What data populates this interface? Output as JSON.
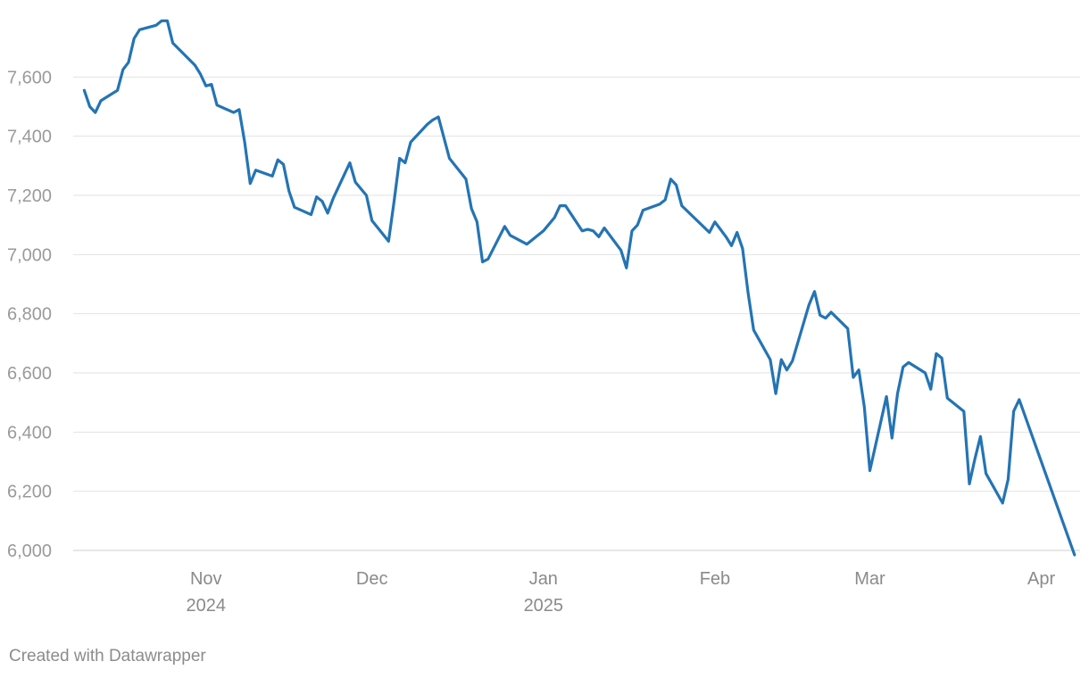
{
  "chart_data": {
    "type": "line",
    "title": "",
    "xlabel": "",
    "ylabel": "",
    "ylim": [
      6000,
      7800
    ],
    "xlim": [
      "2024-10-08",
      "2025-04-08"
    ],
    "grid": true,
    "legend": "none",
    "line_color": "#2474b4",
    "y_ticks": [
      {
        "value": 6000,
        "label": "6,000"
      },
      {
        "value": 6200,
        "label": "6,200"
      },
      {
        "value": 6400,
        "label": "6,400"
      },
      {
        "value": 6600,
        "label": "6,600"
      },
      {
        "value": 6800,
        "label": "6,800"
      },
      {
        "value": 7000,
        "label": "7,000"
      },
      {
        "value": 7200,
        "label": "7,200"
      },
      {
        "value": 7400,
        "label": "7,400"
      },
      {
        "value": 7600,
        "label": "7,600"
      }
    ],
    "x_ticks": [
      {
        "date": "2024-11-01",
        "label": "Nov",
        "sublabel": "2024"
      },
      {
        "date": "2024-12-01",
        "label": "Dec",
        "sublabel": ""
      },
      {
        "date": "2025-01-01",
        "label": "Jan",
        "sublabel": "2025"
      },
      {
        "date": "2025-02-01",
        "label": "Feb",
        "sublabel": ""
      },
      {
        "date": "2025-03-01",
        "label": "Mar",
        "sublabel": ""
      },
      {
        "date": "2025-04-01",
        "label": "Apr",
        "sublabel": ""
      }
    ],
    "series": [
      {
        "points": [
          [
            "2024-10-10",
            7555
          ],
          [
            "2024-10-11",
            7500
          ],
          [
            "2024-10-12",
            7480
          ],
          [
            "2024-10-13",
            7520
          ],
          [
            "2024-10-16",
            7555
          ],
          [
            "2024-10-17",
            7625
          ],
          [
            "2024-10-18",
            7650
          ],
          [
            "2024-10-19",
            7730
          ],
          [
            "2024-10-20",
            7760
          ],
          [
            "2024-10-23",
            7775
          ],
          [
            "2024-10-24",
            7790
          ],
          [
            "2024-10-25",
            7790
          ],
          [
            "2024-10-26",
            7715
          ],
          [
            "2024-10-30",
            7640
          ],
          [
            "2024-10-31",
            7610
          ],
          [
            "2024-11-01",
            7570
          ],
          [
            "2024-11-02",
            7575
          ],
          [
            "2024-11-03",
            7505
          ],
          [
            "2024-11-06",
            7480
          ],
          [
            "2024-11-07",
            7490
          ],
          [
            "2024-11-08",
            7380
          ],
          [
            "2024-11-09",
            7240
          ],
          [
            "2024-11-10",
            7285
          ],
          [
            "2024-11-13",
            7265
          ],
          [
            "2024-11-14",
            7320
          ],
          [
            "2024-11-15",
            7305
          ],
          [
            "2024-11-16",
            7215
          ],
          [
            "2024-11-17",
            7160
          ],
          [
            "2024-11-20",
            7135
          ],
          [
            "2024-11-21",
            7195
          ],
          [
            "2024-11-22",
            7180
          ],
          [
            "2024-11-23",
            7140
          ],
          [
            "2024-11-24",
            7190
          ],
          [
            "2024-11-27",
            7310
          ],
          [
            "2024-11-28",
            7245
          ],
          [
            "2024-11-30",
            7200
          ],
          [
            "2024-12-01",
            7115
          ],
          [
            "2024-12-04",
            7045
          ],
          [
            "2024-12-05",
            7180
          ],
          [
            "2024-12-06",
            7325
          ],
          [
            "2024-12-07",
            7310
          ],
          [
            "2024-12-08",
            7380
          ],
          [
            "2024-12-11",
            7440
          ],
          [
            "2024-12-12",
            7455
          ],
          [
            "2024-12-13",
            7465
          ],
          [
            "2024-12-15",
            7325
          ],
          [
            "2024-12-18",
            7255
          ],
          [
            "2024-12-19",
            7155
          ],
          [
            "2024-12-20",
            7110
          ],
          [
            "2024-12-21",
            6975
          ],
          [
            "2024-12-22",
            6985
          ],
          [
            "2024-12-25",
            7095
          ],
          [
            "2024-12-26",
            7065
          ],
          [
            "2024-12-29",
            7035
          ],
          [
            "2025-01-01",
            7080
          ],
          [
            "2025-01-03",
            7125
          ],
          [
            "2025-01-04",
            7165
          ],
          [
            "2025-01-05",
            7165
          ],
          [
            "2025-01-08",
            7080
          ],
          [
            "2025-01-09",
            7085
          ],
          [
            "2025-01-10",
            7080
          ],
          [
            "2025-01-11",
            7060
          ],
          [
            "2025-01-12",
            7090
          ],
          [
            "2025-01-15",
            7015
          ],
          [
            "2025-01-16",
            6955
          ],
          [
            "2025-01-17",
            7080
          ],
          [
            "2025-01-18",
            7100
          ],
          [
            "2025-01-19",
            7150
          ],
          [
            "2025-01-22",
            7170
          ],
          [
            "2025-01-23",
            7185
          ],
          [
            "2025-01-24",
            7255
          ],
          [
            "2025-01-25",
            7235
          ],
          [
            "2025-01-26",
            7165
          ],
          [
            "2025-01-31",
            7075
          ],
          [
            "2025-02-01",
            7110
          ],
          [
            "2025-02-03",
            7060
          ],
          [
            "2025-02-04",
            7030
          ],
          [
            "2025-02-05",
            7075
          ],
          [
            "2025-02-06",
            7020
          ],
          [
            "2025-02-07",
            6870
          ],
          [
            "2025-02-08",
            6745
          ],
          [
            "2025-02-11",
            6645
          ],
          [
            "2025-02-12",
            6530
          ],
          [
            "2025-02-13",
            6645
          ],
          [
            "2025-02-14",
            6610
          ],
          [
            "2025-02-15",
            6640
          ],
          [
            "2025-02-18",
            6830
          ],
          [
            "2025-02-19",
            6875
          ],
          [
            "2025-02-20",
            6795
          ],
          [
            "2025-02-21",
            6785
          ],
          [
            "2025-02-22",
            6805
          ],
          [
            "2025-02-25",
            6750
          ],
          [
            "2025-02-26",
            6585
          ],
          [
            "2025-02-27",
            6610
          ],
          [
            "2025-02-28",
            6485
          ],
          [
            "2025-03-01",
            6270
          ],
          [
            "2025-03-04",
            6520
          ],
          [
            "2025-03-05",
            6380
          ],
          [
            "2025-03-06",
            6530
          ],
          [
            "2025-03-07",
            6620
          ],
          [
            "2025-03-08",
            6635
          ],
          [
            "2025-03-11",
            6600
          ],
          [
            "2025-03-12",
            6545
          ],
          [
            "2025-03-13",
            6665
          ],
          [
            "2025-03-14",
            6650
          ],
          [
            "2025-03-15",
            6515
          ],
          [
            "2025-03-18",
            6470
          ],
          [
            "2025-03-19",
            6225
          ],
          [
            "2025-03-20",
            6310
          ],
          [
            "2025-03-21",
            6385
          ],
          [
            "2025-03-22",
            6260
          ],
          [
            "2025-03-25",
            6160
          ],
          [
            "2025-03-26",
            6240
          ],
          [
            "2025-03-27",
            6470
          ],
          [
            "2025-03-28",
            6510
          ],
          [
            "2025-04-07",
            5985
          ]
        ]
      }
    ]
  },
  "footer": {
    "credit": "Created with Datawrapper"
  }
}
